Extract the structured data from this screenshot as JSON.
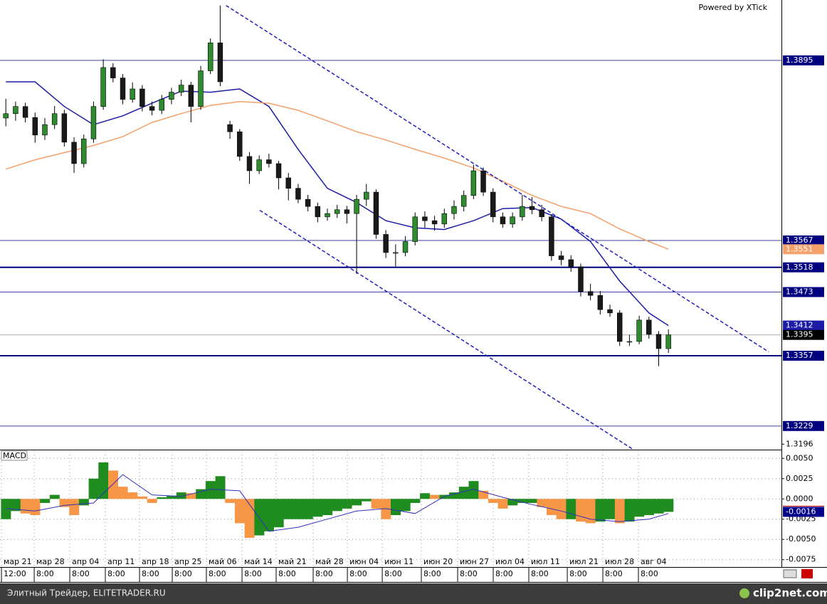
{
  "header": {
    "powered_by": "Powered by XTick"
  },
  "footer": {
    "left": "Элитный Трейдер, ELITETRADER.RU",
    "right": "clip2net.com"
  },
  "chart_data": [
    {
      "type": "candlestick",
      "xlim": [
        -0.6,
        79.6
      ],
      "ylim": [
        1.3186,
        1.4005
      ],
      "yticks": [
        1.3196
      ],
      "bull_color": "#2e8b2e",
      "bear_color": "#1a1a1a",
      "ohlc": [
        [
          1.379,
          1.3825,
          1.3775,
          1.3798
        ],
        [
          1.3798,
          1.382,
          1.3785,
          1.3811
        ],
        [
          1.3811,
          1.3818,
          1.3782,
          1.3791
        ],
        [
          1.3791,
          1.38,
          1.3745,
          1.3759
        ],
        [
          1.3759,
          1.379,
          1.375,
          1.3778
        ],
        [
          1.3778,
          1.3812,
          1.377,
          1.3798
        ],
        [
          1.3798,
          1.3805,
          1.3738,
          1.3746
        ],
        [
          1.3746,
          1.3755,
          1.369,
          1.3707
        ],
        [
          1.3707,
          1.376,
          1.37,
          1.3752
        ],
        [
          1.3752,
          1.382,
          1.3745,
          1.3811
        ],
        [
          1.3811,
          1.3897,
          1.3805,
          1.3882
        ],
        [
          1.3882,
          1.389,
          1.3855,
          1.3863
        ],
        [
          1.3863,
          1.387,
          1.3815,
          1.3824
        ],
        [
          1.3824,
          1.3855,
          1.3818,
          1.3843
        ],
        [
          1.3843,
          1.385,
          1.3802,
          1.3811
        ],
        [
          1.3811,
          1.382,
          1.3795,
          1.3804
        ],
        [
          1.3804,
          1.3832,
          1.3797,
          1.3824
        ],
        [
          1.3824,
          1.3845,
          1.3815,
          1.3837
        ],
        [
          1.3837,
          1.386,
          1.383,
          1.385
        ],
        [
          1.385,
          1.3856,
          1.3782,
          1.3811
        ],
        [
          1.3811,
          1.3885,
          1.3805,
          1.3876
        ],
        [
          1.3876,
          1.3935,
          1.387,
          1.3927
        ],
        [
          1.3927,
          1.3995,
          1.3848,
          1.3856
        ],
        [
          1.3778,
          1.3785,
          1.3752,
          1.3765
        ],
        [
          1.3765,
          1.377,
          1.3712,
          1.372
        ],
        [
          1.372,
          1.3728,
          1.367,
          1.3694
        ],
        [
          1.3694,
          1.3722,
          1.3688,
          1.3714
        ],
        [
          1.3714,
          1.3725,
          1.37,
          1.3707
        ],
        [
          1.3707,
          1.3712,
          1.366,
          1.3681
        ],
        [
          1.3681,
          1.369,
          1.364,
          1.3662
        ],
        [
          1.3662,
          1.367,
          1.3635,
          1.3642
        ],
        [
          1.3642,
          1.365,
          1.362,
          1.3629
        ],
        [
          1.3629,
          1.3636,
          1.36,
          1.361
        ],
        [
          1.361,
          1.3625,
          1.3603,
          1.3616
        ],
        [
          1.3616,
          1.3632,
          1.3608,
          1.3623
        ],
        [
          1.3623,
          1.363,
          1.3598,
          1.3616
        ],
        [
          1.3616,
          1.365,
          1.3506,
          1.3642
        ],
        [
          1.3642,
          1.367,
          1.363,
          1.3655
        ],
        [
          1.3655,
          1.366,
          1.357,
          1.3578
        ],
        [
          1.3578,
          1.3586,
          1.3535,
          1.3545
        ],
        [
          1.3545,
          1.356,
          1.3519,
          1.3545
        ],
        [
          1.3545,
          1.3575,
          1.3538,
          1.3565
        ],
        [
          1.3565,
          1.3618,
          1.3558,
          1.361
        ],
        [
          1.361,
          1.362,
          1.359,
          1.3603
        ],
        [
          1.3603,
          1.3612,
          1.3585,
          1.3597
        ],
        [
          1.3597,
          1.3625,
          1.359,
          1.3616
        ],
        [
          1.3616,
          1.364,
          1.3605,
          1.3629
        ],
        [
          1.3629,
          1.3658,
          1.362,
          1.3649
        ],
        [
          1.3649,
          1.3705,
          1.3642,
          1.3694
        ],
        [
          1.3694,
          1.37,
          1.3648,
          1.3655
        ],
        [
          1.3655,
          1.3662,
          1.36,
          1.361
        ],
        [
          1.361,
          1.3618,
          1.359,
          1.3597
        ],
        [
          1.3597,
          1.3618,
          1.359,
          1.361
        ],
        [
          1.361,
          1.365,
          1.3603,
          1.3629
        ],
        [
          1.3629,
          1.3646,
          1.3615,
          1.3623
        ],
        [
          1.3623,
          1.3632,
          1.3602,
          1.361
        ],
        [
          1.361,
          1.3615,
          1.353,
          1.3539
        ],
        [
          1.3539,
          1.3548,
          1.3522,
          1.3532
        ],
        [
          1.3532,
          1.354,
          1.351,
          1.3519
        ],
        [
          1.3519,
          1.3525,
          1.3465,
          1.3474
        ],
        [
          1.3474,
          1.3488,
          1.3458,
          1.3467
        ],
        [
          1.3467,
          1.3475,
          1.3432,
          1.3441
        ],
        [
          1.3441,
          1.345,
          1.3428,
          1.3435
        ],
        [
          1.3435,
          1.344,
          1.3375,
          1.3383
        ],
        [
          1.3383,
          1.3395,
          1.3375,
          1.3383
        ],
        [
          1.3383,
          1.343,
          1.3378,
          1.3422
        ],
        [
          1.3422,
          1.3428,
          1.3388,
          1.3396
        ],
        [
          1.3396,
          1.3402,
          1.3338,
          1.337
        ],
        [
          1.337,
          1.3405,
          1.3362,
          1.3395
        ]
      ],
      "overlays": [
        {
          "color": "#1c1ca8",
          "x": [
            0,
            3,
            6,
            9,
            12,
            15,
            18,
            21,
            24,
            27,
            30,
            33,
            36,
            39,
            42,
            45,
            48,
            51,
            54,
            57,
            60,
            63,
            66,
            68
          ],
          "values": [
            1.3856,
            1.3856,
            1.3811,
            1.3778,
            1.3794,
            1.3817,
            1.3839,
            1.3837,
            1.3843,
            1.3811,
            1.3733,
            1.3662,
            1.3636,
            1.3603,
            1.359,
            1.3587,
            1.3603,
            1.3625,
            1.3627,
            1.3606,
            1.3565,
            1.3493,
            1.3435,
            1.3412
          ]
        },
        {
          "color": "#f4a06a",
          "x": [
            0,
            3,
            6,
            9,
            12,
            15,
            18,
            21,
            24,
            27,
            30,
            33,
            36,
            39,
            42,
            45,
            48,
            51,
            54,
            57,
            60,
            63,
            66,
            68
          ],
          "values": [
            1.3697,
            1.3714,
            1.3727,
            1.374,
            1.3756,
            1.3782,
            1.3798,
            1.3813,
            1.382,
            1.3817,
            1.3804,
            1.3785,
            1.3765,
            1.375,
            1.3733,
            1.3717,
            1.3699,
            1.3675,
            1.3649,
            1.3629,
            1.3616,
            1.3588,
            1.3565,
            1.3551
          ]
        }
      ],
      "trendlines": [
        {
          "color": "#2020c0",
          "x": [
            22.6,
            78.29
          ],
          "values": [
            1.3995,
            1.3364
          ]
        },
        {
          "color": "#2020c0",
          "x": [
            26.06,
            64.41
          ],
          "values": [
            1.3622,
            1.3186
          ]
        }
      ],
      "levels": [
        {
          "value": 1.3895,
          "kind": "minor"
        },
        {
          "value": 1.3567,
          "kind": "minor"
        },
        {
          "value": 1.3518,
          "kind": "major"
        },
        {
          "value": 1.3473,
          "kind": "minor"
        },
        {
          "value": 1.3357,
          "kind": "major"
        },
        {
          "value": 1.3229,
          "kind": "minor"
        }
      ],
      "level_color": "#000080",
      "xticks": [
        {
          "value": -0.45,
          "label": "мар 21"
        },
        {
          "value": 2.91,
          "label": "мар 28"
        },
        {
          "value": 6.56,
          "label": "апр 04"
        },
        {
          "value": 10.21,
          "label": "апр 11"
        },
        {
          "value": 13.72,
          "label": "апр 18"
        },
        {
          "value": 17.08,
          "label": "апр 25"
        },
        {
          "value": 20.58,
          "label": "май 06"
        },
        {
          "value": 24.24,
          "label": "май 14"
        },
        {
          "value": 27.74,
          "label": "май 21"
        },
        {
          "value": 31.54,
          "label": "май 28"
        },
        {
          "value": 35.05,
          "label": "июн 04"
        },
        {
          "value": 38.63,
          "label": "июн 11"
        },
        {
          "value": 42.64,
          "label": "июн 20"
        },
        {
          "value": 46.37,
          "label": "июн 27"
        },
        {
          "value": 50.02,
          "label": "июл 04"
        },
        {
          "value": 53.67,
          "label": "июл 11"
        },
        {
          "value": 57.62,
          "label": "июл 21"
        },
        {
          "value": 61.27,
          "label": "июл 28"
        },
        {
          "value": 64.92,
          "label": "авг 04"
        }
      ],
      "xtick_times": [
        "12:00",
        "8:00",
        "8:00",
        "8:00",
        "8:00",
        "8:00",
        "8:00",
        "8:00",
        "8:00",
        "8:00",
        "8:00",
        "8:00",
        "8:00",
        "8:00",
        "8:00",
        "8:00",
        "8:00",
        "8:00",
        "8:00"
      ]
    },
    {
      "type": "bar",
      "title": "MACD",
      "values": [
        -0.0025,
        -0.0015,
        -0.0018,
        -0.002,
        -0.0005,
        0.0005,
        -0.001,
        -0.002,
        -0.0008,
        0.0025,
        0.0045,
        0.0035,
        0.0015,
        0.0008,
        0.0003,
        -0.0005,
        0.0002,
        0.0004,
        0.0008,
        0.0007,
        0.0012,
        0.0022,
        0.0028,
        -0.0005,
        -0.003,
        -0.0048,
        -0.0045,
        -0.004,
        -0.0035,
        -0.0025,
        -0.0025,
        -0.0025,
        -0.0022,
        -0.002,
        -0.0015,
        -0.0012,
        -0.0008,
        -0.0003,
        -0.0012,
        -0.0025,
        -0.002,
        -0.0015,
        -0.0005,
        0.0007,
        0.0005,
        0.0005,
        0.0008,
        0.0015,
        0.0022,
        0.001,
        -0.0005,
        -0.0012,
        -0.0008,
        -0.0005,
        -0.0005,
        -0.001,
        -0.002,
        -0.0025,
        -0.0025,
        -0.0028,
        -0.003,
        -0.0028,
        -0.0025,
        -0.003,
        -0.0028,
        -0.0022,
        -0.002,
        -0.0018,
        -0.0016
      ],
      "up_color": "#1e8c1e",
      "down_color": "#f79646",
      "signal": {
        "color": "#3030c0",
        "x": [
          0,
          3,
          6,
          9,
          12,
          15,
          18,
          21,
          24,
          27,
          30,
          33,
          36,
          39,
          42,
          45,
          48,
          51,
          54,
          57,
          60,
          63,
          66,
          68
        ],
        "values": [
          -0.0012,
          -0.0015,
          -0.0008,
          -0.0005,
          0.003,
          0.0005,
          0.0003,
          0.0012,
          0.001,
          -0.004,
          -0.0035,
          -0.0025,
          -0.0015,
          -0.0012,
          -0.0018,
          0.0003,
          0.0012,
          0.0002,
          -0.0007,
          -0.0015,
          -0.0025,
          -0.0028,
          -0.0025,
          -0.0018
        ]
      },
      "ylim": [
        -0.0084,
        0.0059
      ],
      "yticks": [
        {
          "value": 0.005,
          "label": "0.0050"
        },
        {
          "value": 0.0025,
          "label": "0.0025"
        },
        {
          "value": 0,
          "label": "0.0000"
        },
        {
          "value": -0.0025,
          "label": "-0.0025"
        },
        {
          "value": -0.005,
          "label": "-0.0050"
        },
        {
          "value": -0.0075,
          "label": "-0.0075"
        }
      ],
      "grid": true
    }
  ]
}
